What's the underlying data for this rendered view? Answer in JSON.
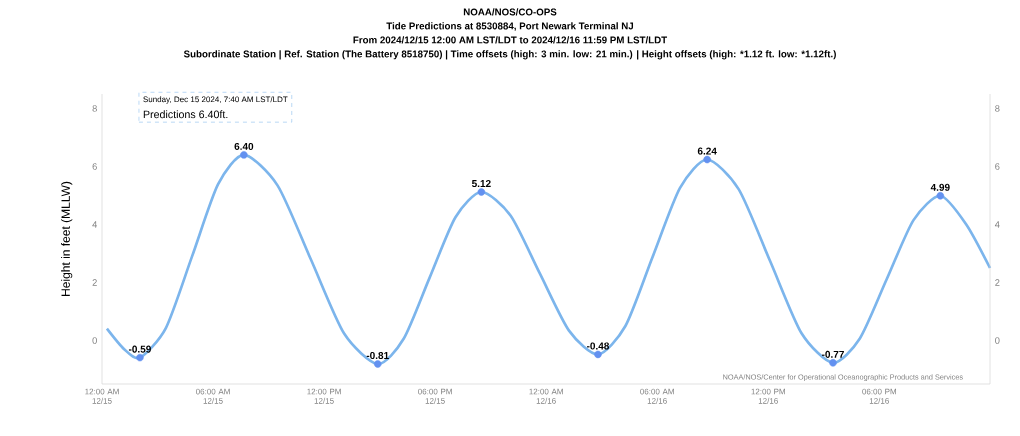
{
  "chart_data": {
    "type": "line",
    "title": "NOAA/NOS/CO-OPS",
    "subtitle": "Tide Predictions at 8530884, Port Newark Terminal NJ",
    "ylabel": "Height in feet (MLLW)",
    "annotations": [
      "From 2024/12/15 12:00 AM LST/LDT to 2024/12/16 11:59 PM LST/LDT",
      "Subordinate Station | Ref. Station (The Battery 8518750) | Time offsets (high: 3 min. low: 21 min.) | Height offsets (high: *1.12 ft. low: *1.12ft.)",
      "Sunday, Dec 15 2024, 7:40 AM LST/LDT",
      "Predictions 6.40ft.",
      "NOAA/NOS/Center for Operational Oceanographic Products and Services"
    ],
    "x": [
      "2024-12-15T00:16",
      "2024-12-15T01:12",
      "2024-12-15T02:03",
      "2024-12-15T03:27",
      "2024-12-15T04:52",
      "2024-12-15T06:16",
      "2024-12-15T07:40",
      "2024-12-15T09:29",
      "2024-12-15T11:17",
      "2024-12-15T13:05",
      "2024-12-15T14:54",
      "2024-12-15T16:18",
      "2024-12-15T17:42",
      "2024-12-15T19:06",
      "2024-12-15T20:30",
      "2024-12-15T22:05",
      "2024-12-15T23:39",
      "2024-12-16T01:14",
      "2024-12-16T02:48",
      "2024-12-16T04:17",
      "2024-12-16T05:45",
      "2024-12-16T07:14",
      "2024-12-16T08:42",
      "2024-12-16T10:24",
      "2024-12-16T12:06",
      "2024-12-16T13:48",
      "2024-12-16T15:30",
      "2024-12-16T16:57",
      "2024-12-16T18:24",
      "2024-12-16T19:51",
      "2024-12-16T21:18",
      "2024-12-16T22:42",
      "2024-12-16T23:59"
    ],
    "values": [
      0.41,
      -0.3,
      -0.59,
      0.43,
      2.9,
      5.38,
      6.4,
      5.35,
      2.8,
      0.24,
      -0.81,
      0.06,
      2.16,
      4.25,
      5.12,
      4.3,
      2.32,
      0.34,
      -0.48,
      0.5,
      2.88,
      5.26,
      6.24,
      5.22,
      2.74,
      0.25,
      -0.77,
      0.07,
      2.11,
      4.15,
      4.99,
      4.0,
      2.5
    ],
    "value_labels": [
      null,
      null,
      "-0.59",
      null,
      null,
      null,
      "6.40",
      null,
      null,
      null,
      "-0.81",
      null,
      null,
      null,
      "5.12",
      null,
      null,
      null,
      "-0.48",
      null,
      null,
      null,
      "6.24",
      null,
      null,
      null,
      "-0.77",
      null,
      null,
      null,
      "4.99",
      null,
      null
    ],
    "color": "#7cb5ec",
    "xlim": [
      "2024-12-15T00:00",
      "2024-12-16T23:59"
    ],
    "xticks": [
      {
        "value": "2024-12-15T00:00",
        "label": "12:00 AM 12/15"
      },
      {
        "value": "2024-12-15T06:00",
        "label": "06:00 AM 12/15"
      },
      {
        "value": "2024-12-15T12:00",
        "label": "12:00 PM 12/15"
      },
      {
        "value": "2024-12-15T18:00",
        "label": "06:00 PM 12/15"
      },
      {
        "value": "2024-12-16T00:00",
        "label": "12:00 AM 12/16"
      },
      {
        "value": "2024-12-16T06:00",
        "label": "06:00 AM 12/16"
      },
      {
        "value": "2024-12-16T12:00",
        "label": "12:00 PM 12/16"
      },
      {
        "value": "2024-12-16T18:00",
        "label": "06:00 PM 12/16"
      }
    ],
    "ylim": [
      -1.5,
      8.5
    ],
    "yticks": [
      0,
      2,
      4,
      6,
      8
    ],
    "y2lim": [
      -1.5,
      8.5
    ],
    "y2ticks": [
      0,
      2,
      4,
      6,
      8
    ],
    "grid": false
  }
}
